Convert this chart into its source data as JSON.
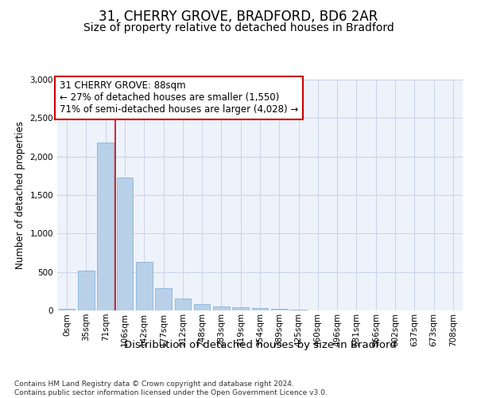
{
  "title1": "31, CHERRY GROVE, BRADFORD, BD6 2AR",
  "title2": "Size of property relative to detached houses in Bradford",
  "xlabel": "Distribution of detached houses by size in Bradford",
  "ylabel": "Number of detached properties",
  "categories": [
    "0sqm",
    "35sqm",
    "71sqm",
    "106sqm",
    "142sqm",
    "177sqm",
    "212sqm",
    "248sqm",
    "283sqm",
    "319sqm",
    "354sqm",
    "389sqm",
    "425sqm",
    "460sqm",
    "496sqm",
    "531sqm",
    "566sqm",
    "602sqm",
    "637sqm",
    "673sqm",
    "708sqm"
  ],
  "values": [
    20,
    520,
    2180,
    1730,
    635,
    290,
    155,
    80,
    55,
    40,
    35,
    20,
    10,
    5,
    3,
    2,
    1,
    0,
    0,
    0,
    0
  ],
  "bar_color": "#b8d0e8",
  "bar_edge_color": "#7aacd4",
  "grid_color": "#c8d4e8",
  "background_color": "#eef2fa",
  "vline_color": "#cc0000",
  "vline_pos": 2.5,
  "annotation_text": "31 CHERRY GROVE: 88sqm\n← 27% of detached houses are smaller (1,550)\n71% of semi-detached houses are larger (4,028) →",
  "annotation_box_color": "white",
  "annotation_box_edge": "#cc0000",
  "ylim": [
    0,
    3000
  ],
  "yticks": [
    0,
    500,
    1000,
    1500,
    2000,
    2500,
    3000
  ],
  "footnote": "Contains HM Land Registry data © Crown copyright and database right 2024.\nContains public sector information licensed under the Open Government Licence v3.0.",
  "title1_fontsize": 12,
  "title2_fontsize": 10,
  "xlabel_fontsize": 9.5,
  "ylabel_fontsize": 8.5,
  "tick_fontsize": 7.5,
  "annot_fontsize": 8.5,
  "footnote_fontsize": 6.5
}
